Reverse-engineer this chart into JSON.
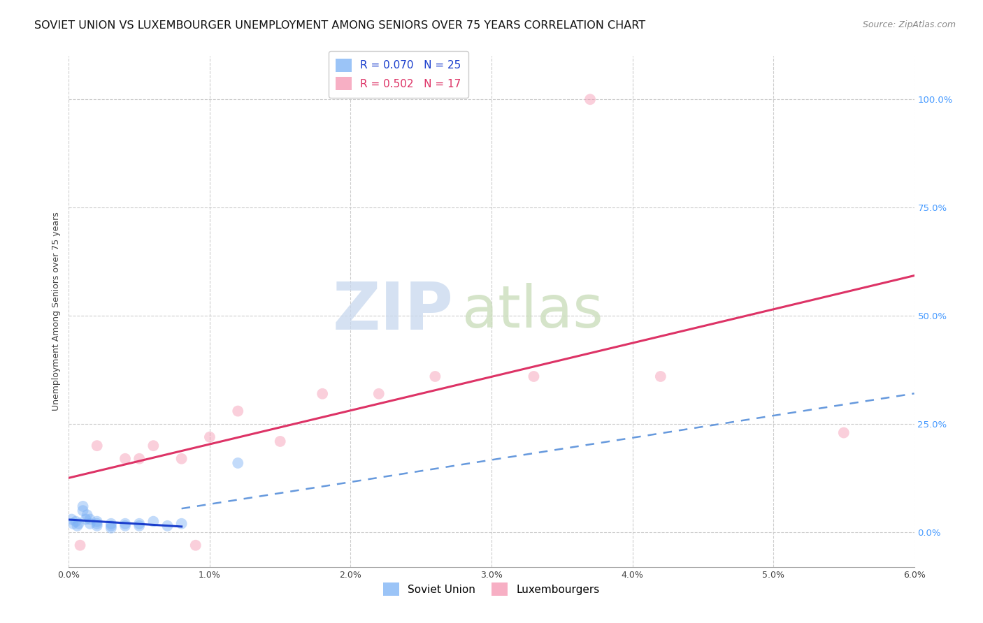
{
  "title": "SOVIET UNION VS LUXEMBOURGER UNEMPLOYMENT AMONG SENIORS OVER 75 YEARS CORRELATION CHART",
  "source": "Source: ZipAtlas.com",
  "ylabel": "Unemployment Among Seniors over 75 years",
  "xlim": [
    0.0,
    0.06
  ],
  "ylim": [
    -0.08,
    1.1
  ],
  "xtick_labels": [
    "0.0%",
    "1.0%",
    "2.0%",
    "3.0%",
    "4.0%",
    "5.0%",
    "6.0%"
  ],
  "xtick_values": [
    0.0,
    0.01,
    0.02,
    0.03,
    0.04,
    0.05,
    0.06
  ],
  "ytick_labels": [
    "0.0%",
    "25.0%",
    "50.0%",
    "75.0%",
    "100.0%"
  ],
  "ytick_values": [
    0.0,
    0.25,
    0.5,
    0.75,
    1.0
  ],
  "soviet_x": [
    0.0002,
    0.0003,
    0.0005,
    0.0006,
    0.0007,
    0.001,
    0.001,
    0.0012,
    0.0013,
    0.0015,
    0.0015,
    0.002,
    0.002,
    0.002,
    0.003,
    0.003,
    0.003,
    0.004,
    0.004,
    0.005,
    0.005,
    0.006,
    0.007,
    0.008,
    0.012
  ],
  "soviet_y": [
    0.03,
    0.02,
    0.025,
    0.015,
    0.02,
    0.05,
    0.06,
    0.03,
    0.04,
    0.02,
    0.03,
    0.015,
    0.02,
    0.025,
    0.01,
    0.015,
    0.02,
    0.015,
    0.02,
    0.015,
    0.02,
    0.025,
    0.015,
    0.02,
    0.16
  ],
  "luxem_x": [
    0.0008,
    0.002,
    0.004,
    0.005,
    0.006,
    0.008,
    0.009,
    0.01,
    0.012,
    0.015,
    0.018,
    0.022,
    0.026,
    0.033,
    0.037,
    0.042,
    0.055
  ],
  "luxem_y": [
    -0.03,
    0.2,
    0.17,
    0.17,
    0.2,
    0.17,
    -0.03,
    0.22,
    0.28,
    0.21,
    0.32,
    0.32,
    0.36,
    0.36,
    1.0,
    0.36,
    0.23
  ],
  "soviet_color": "#7ab0f5",
  "luxem_color": "#f595b0",
  "soviet_trend_solid_color": "#1a3ecc",
  "soviet_trend_dash_color": "#6699dd",
  "luxem_trend_color": "#dd3366",
  "soviet_trend_solid_end": 0.008,
  "soviet_R": 0.07,
  "soviet_N": 25,
  "luxem_R": 0.502,
  "luxem_N": 17,
  "watermark_zip_color": "#c8d8ee",
  "watermark_atlas_color": "#c8dcb8",
  "background_color": "#ffffff",
  "grid_color": "#cccccc",
  "marker_size": 130,
  "marker_alpha": 0.45,
  "title_fontsize": 11.5,
  "axis_label_fontsize": 9,
  "tick_fontsize": 9,
  "legend_fontsize": 11,
  "source_fontsize": 9,
  "right_tick_color": "#4499ff"
}
